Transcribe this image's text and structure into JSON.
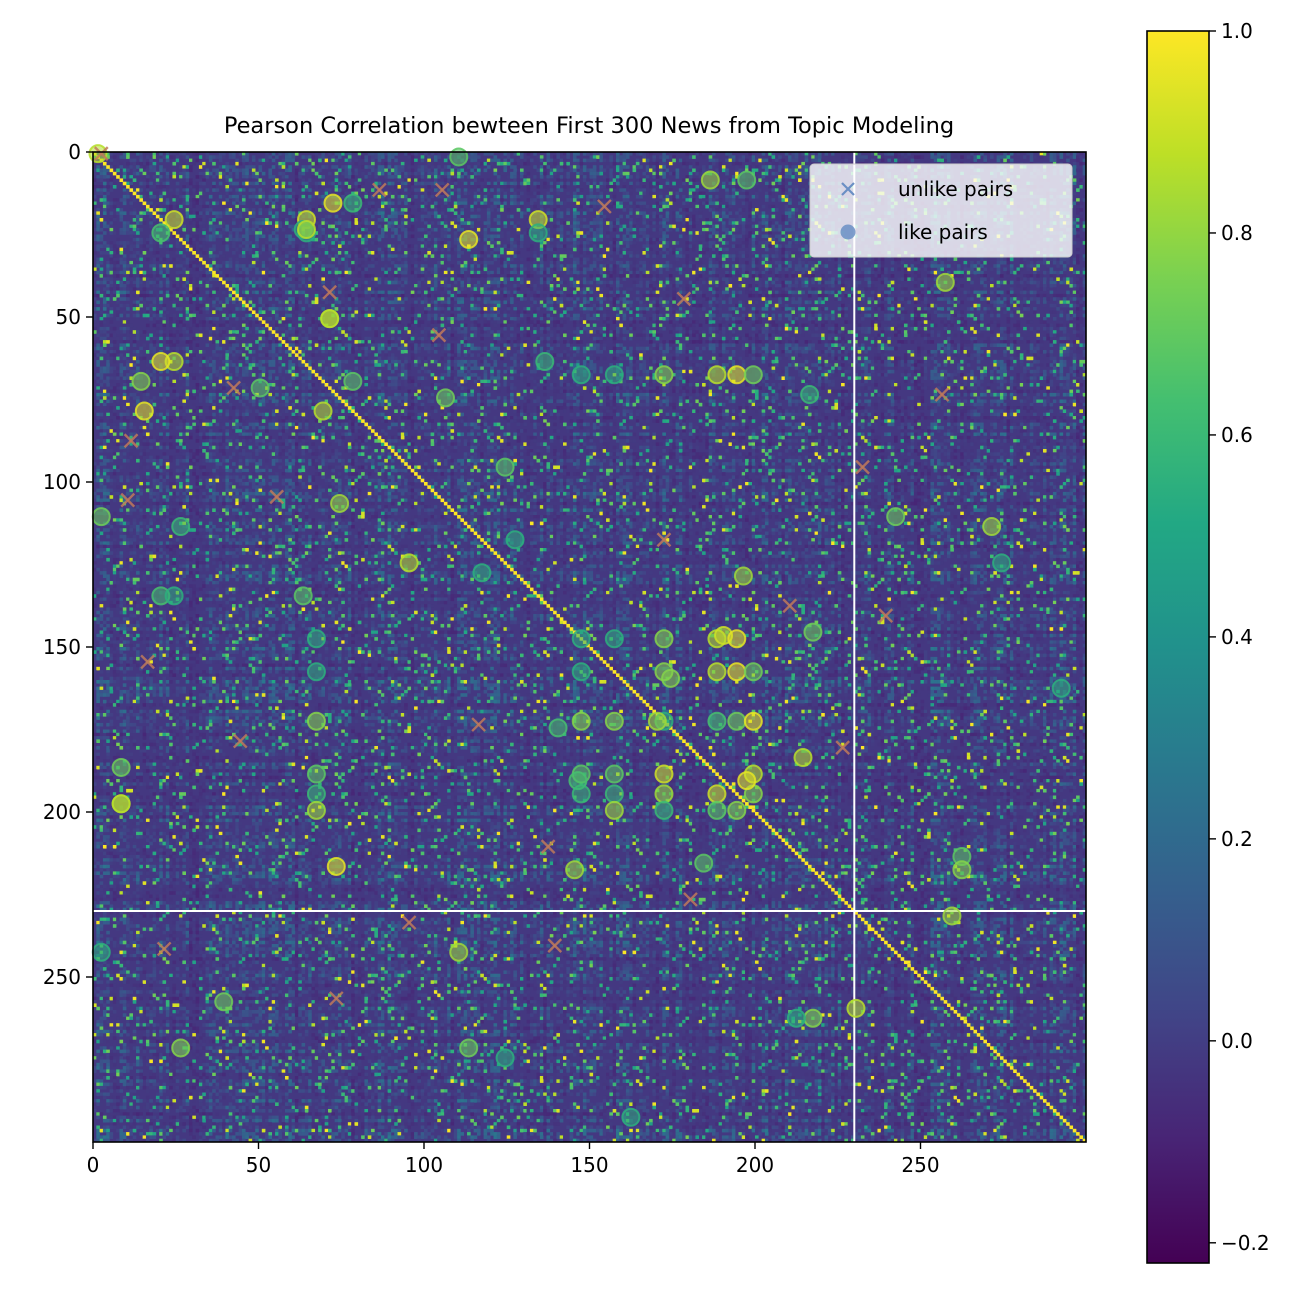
{
  "chart_data": {
    "type": "heatmap",
    "title": "Pearson Correlation bewteen First 300 News from Topic Modeling",
    "size": 300,
    "colormap": "viridis",
    "value_range": [
      -0.22,
      1.0
    ],
    "xlim": [
      0,
      300
    ],
    "ylim": [
      300,
      0
    ],
    "x_ticks": [
      0,
      50,
      100,
      150,
      200,
      250
    ],
    "y_ticks": [
      0,
      50,
      100,
      150,
      200,
      250
    ],
    "x_tick_labels": [
      "0",
      "50",
      "100",
      "150",
      "200",
      "250"
    ],
    "y_tick_labels": [
      "0",
      "50",
      "100",
      "150",
      "200",
      "250"
    ],
    "colorbar_ticks": [
      -0.2,
      0.0,
      0.2,
      0.4,
      0.6,
      0.8,
      1.0
    ],
    "colorbar_tick_labels": [
      "−0.2",
      "0.0",
      "0.2",
      "0.4",
      "0.6",
      "0.8",
      "1.0"
    ],
    "diagonal_value": 1.0,
    "white_guide_lines": {
      "x": 230,
      "y": 230
    },
    "legend": {
      "placement": "top-right",
      "entries": [
        {
          "label": "unlike pairs",
          "marker": "x",
          "color": "#6a8fc4"
        },
        {
          "label": "like pairs",
          "marker": "o",
          "color": "#6a8fc4"
        }
      ]
    },
    "like_pairs": [
      [
        1,
        0
      ],
      [
        24,
        20
      ],
      [
        20,
        24
      ],
      [
        113,
        26
      ],
      [
        134,
        20
      ],
      [
        134,
        24
      ],
      [
        110,
        1
      ],
      [
        64,
        20
      ],
      [
        64,
        24
      ],
      [
        78,
        15
      ],
      [
        71,
        50
      ],
      [
        24,
        63
      ],
      [
        20,
        63
      ],
      [
        72,
        15
      ],
      [
        147,
        67
      ],
      [
        157,
        67
      ],
      [
        172,
        67
      ],
      [
        188,
        67
      ],
      [
        194,
        67
      ],
      [
        199,
        67
      ],
      [
        50,
        71
      ],
      [
        78,
        69
      ],
      [
        14,
        69
      ],
      [
        15,
        78
      ],
      [
        69,
        78
      ],
      [
        106,
        74
      ],
      [
        216,
        73
      ],
      [
        257,
        39
      ],
      [
        186,
        8
      ],
      [
        197,
        8
      ],
      [
        124,
        95
      ],
      [
        2,
        110
      ],
      [
        26,
        113
      ],
      [
        127,
        117
      ],
      [
        117,
        127
      ],
      [
        242,
        110
      ],
      [
        271,
        113
      ],
      [
        274,
        124
      ],
      [
        95,
        124
      ],
      [
        20,
        134
      ],
      [
        24,
        134
      ],
      [
        63,
        134
      ],
      [
        147,
        147
      ],
      [
        157,
        147
      ],
      [
        172,
        147
      ],
      [
        188,
        147
      ],
      [
        190,
        146
      ],
      [
        194,
        147
      ],
      [
        67,
        147
      ],
      [
        67,
        157
      ],
      [
        67,
        172
      ],
      [
        147,
        157
      ],
      [
        157,
        172
      ],
      [
        172,
        157
      ],
      [
        188,
        157
      ],
      [
        194,
        157
      ],
      [
        199,
        157
      ],
      [
        147,
        172
      ],
      [
        172,
        172
      ],
      [
        188,
        172
      ],
      [
        194,
        172
      ],
      [
        199,
        172
      ],
      [
        67,
        188
      ],
      [
        67,
        194
      ],
      [
        67,
        199
      ],
      [
        147,
        188
      ],
      [
        146,
        190
      ],
      [
        147,
        194
      ],
      [
        157,
        188
      ],
      [
        157,
        194
      ],
      [
        157,
        199
      ],
      [
        172,
        188
      ],
      [
        172,
        194
      ],
      [
        172,
        199
      ],
      [
        188,
        194
      ],
      [
        188,
        199
      ],
      [
        194,
        199
      ],
      [
        199,
        188
      ],
      [
        199,
        194
      ],
      [
        197,
        190
      ],
      [
        217,
        145
      ],
      [
        292,
        162
      ],
      [
        8,
        186
      ],
      [
        8,
        197
      ],
      [
        214,
        183
      ],
      [
        73,
        216
      ],
      [
        145,
        217
      ],
      [
        184,
        215
      ],
      [
        262,
        213
      ],
      [
        262,
        217
      ],
      [
        259,
        231
      ],
      [
        2,
        242
      ],
      [
        110,
        242
      ],
      [
        39,
        257
      ],
      [
        217,
        262
      ],
      [
        230,
        259
      ],
      [
        212,
        262
      ],
      [
        26,
        271
      ],
      [
        113,
        271
      ],
      [
        124,
        274
      ],
      [
        162,
        292
      ],
      [
        170,
        172
      ],
      [
        74,
        106
      ],
      [
        71,
        50
      ],
      [
        136,
        63
      ],
      [
        8,
        197
      ],
      [
        196,
        128
      ],
      [
        174,
        159
      ],
      [
        63,
        23
      ],
      [
        64,
        23
      ],
      [
        140,
        174
      ]
    ],
    "unlike_pairs": [
      [
        2,
        0
      ],
      [
        86,
        11
      ],
      [
        105,
        11
      ],
      [
        154,
        16
      ],
      [
        71,
        42
      ],
      [
        178,
        44
      ],
      [
        104,
        55
      ],
      [
        42,
        71
      ],
      [
        11,
        87
      ],
      [
        232,
        95
      ],
      [
        10,
        105
      ],
      [
        55,
        104
      ],
      [
        172,
        117
      ],
      [
        256,
        73
      ],
      [
        210,
        137
      ],
      [
        239,
        140
      ],
      [
        16,
        154
      ],
      [
        116,
        173
      ],
      [
        44,
        178
      ],
      [
        226,
        180
      ],
      [
        137,
        210
      ],
      [
        180,
        226
      ],
      [
        95,
        233
      ],
      [
        21,
        241
      ],
      [
        139,
        240
      ],
      [
        73,
        256
      ]
    ]
  }
}
